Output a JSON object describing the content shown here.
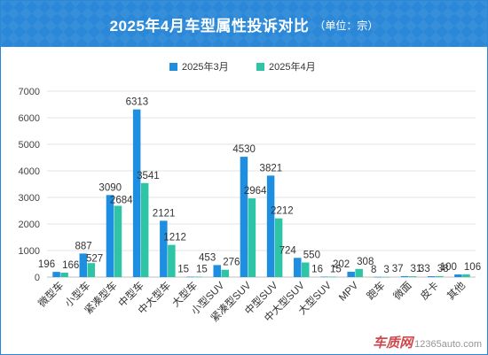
{
  "header": {
    "title": "2025年4月车型属性投诉对比",
    "unit": "（单位：宗）",
    "background_color": "#2b88d8"
  },
  "watermark": {
    "brand": "车质网",
    "site": "12365auto.com"
  },
  "chart_data": {
    "type": "bar",
    "title": "2025年4月车型属性投诉对比",
    "xlabel": "",
    "ylabel": "",
    "ylim": [
      0,
      7000
    ],
    "yticks": [
      0,
      1000,
      2000,
      3000,
      4000,
      5000,
      6000,
      7000
    ],
    "grid": true,
    "legend_position": "top",
    "categories": [
      "微型车",
      "小型车",
      "紧凑型车",
      "中型车",
      "中大型车",
      "大型车",
      "小型SUV",
      "紧凑型SUV",
      "中型SUV",
      "中大型SUV",
      "大型SUV",
      "MPV",
      "跑车",
      "微面",
      "皮卡",
      "其他"
    ],
    "series": [
      {
        "name": "2025年3月",
        "color": "#1e8ee0",
        "values": [
          196,
          887,
          3090,
          6313,
          2121,
          15,
          453,
          4530,
          3821,
          724,
          16,
          202,
          8,
          37,
          33,
          100
        ]
      },
      {
        "name": "2025年4月",
        "color": "#2ec4a6",
        "values": [
          166,
          527,
          2684,
          3541,
          1212,
          15,
          276,
          2964,
          2212,
          550,
          15,
          308,
          3,
          31,
          38,
          106
        ]
      }
    ]
  }
}
